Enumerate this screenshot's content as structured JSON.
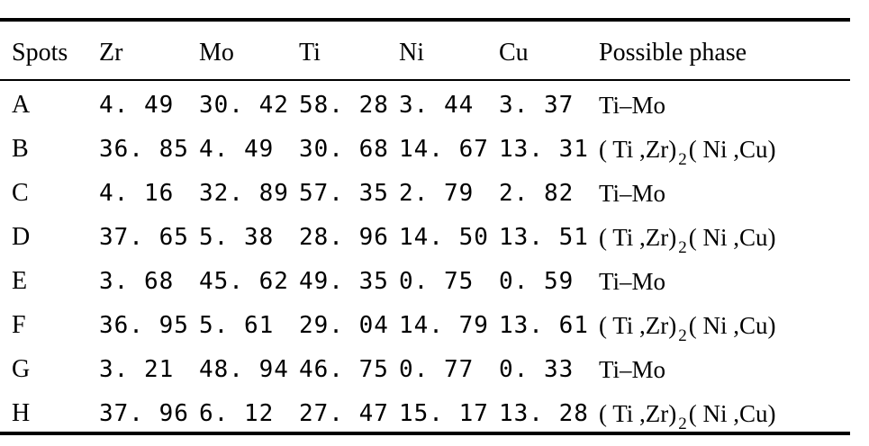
{
  "table": {
    "headers": {
      "spot": "Spots",
      "zr": "Zr",
      "mo": "Mo",
      "ti": "Ti",
      "ni": "Ni",
      "cu": "Cu",
      "phase": "Possible phase"
    },
    "rows": [
      {
        "spot": "A",
        "zr": "4. 49",
        "mo": "30. 42",
        "ti": "58. 28",
        "ni": "3. 44",
        "cu": "3. 37",
        "phase_a": "Ti–Mo",
        "phase_sub": "",
        "phase_b": ""
      },
      {
        "spot": "B",
        "zr": "36. 85",
        "mo": "4. 49",
        "ti": "30. 68",
        "ni": "14. 67",
        "cu": "13. 31",
        "phase_a": "( Ti ,Zr)",
        "phase_sub": "2",
        "phase_b": "( Ni ,Cu)"
      },
      {
        "spot": "C",
        "zr": "4. 16",
        "mo": "32. 89",
        "ti": "57. 35",
        "ni": "2. 79",
        "cu": "2. 82",
        "phase_a": "Ti–Mo",
        "phase_sub": "",
        "phase_b": ""
      },
      {
        "spot": "D",
        "zr": "37. 65",
        "mo": "5. 38",
        "ti": "28. 96",
        "ni": "14. 50",
        "cu": "13. 51",
        "phase_a": "( Ti ,Zr)",
        "phase_sub": "2",
        "phase_b": "( Ni ,Cu)"
      },
      {
        "spot": "E",
        "zr": "3. 68",
        "mo": "45. 62",
        "ti": "49. 35",
        "ni": "0. 75",
        "cu": "0. 59",
        "phase_a": "Ti–Mo",
        "phase_sub": "",
        "phase_b": ""
      },
      {
        "spot": "F",
        "zr": "36. 95",
        "mo": "5. 61",
        "ti": "29. 04",
        "ni": "14. 79",
        "cu": "13. 61",
        "phase_a": "( Ti ,Zr)",
        "phase_sub": "2",
        "phase_b": "( Ni ,Cu)"
      },
      {
        "spot": "G",
        "zr": "3. 21",
        "mo": "48. 94",
        "ti": "46. 75",
        "ni": "0. 77",
        "cu": "0. 33",
        "phase_a": "Ti–Mo",
        "phase_sub": "",
        "phase_b": ""
      },
      {
        "spot": "H",
        "zr": "37. 96",
        "mo": "6. 12",
        "ti": "27. 47",
        "ni": "15. 17",
        "cu": "13. 28",
        "phase_a": "( Ti ,Zr)",
        "phase_sub": "2",
        "phase_b": "( Ni ,Cu)"
      }
    ]
  }
}
